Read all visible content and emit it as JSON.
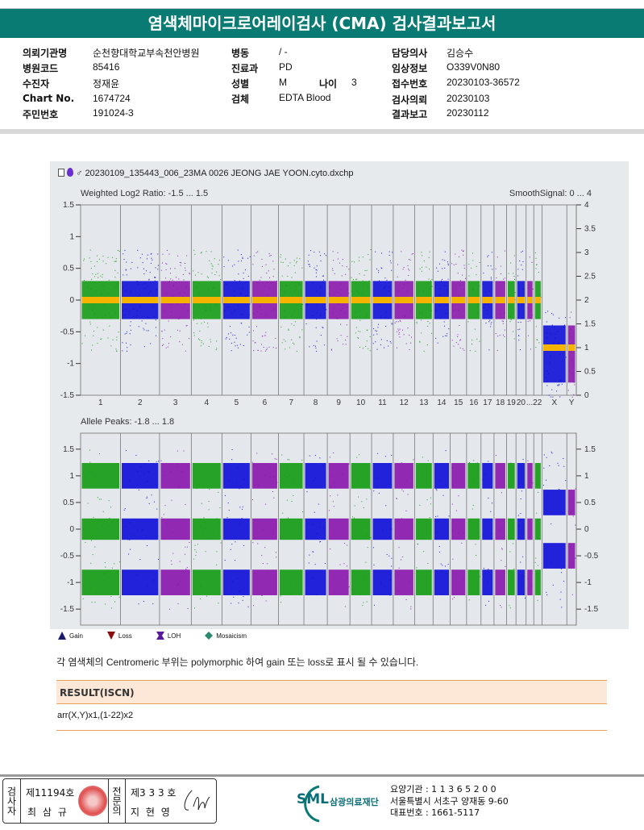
{
  "title": "염색체마이크로어레이검사 (CMA) 검사결과보고서",
  "info": {
    "hospital_label": "의뢰기관명",
    "hospital": "순천향대학교부속천안병원",
    "code_label": "병원코드",
    "code": "85416",
    "patient_label": "수진자",
    "patient": "정재윤",
    "chart_label": "Chart No.",
    "chart": "1674724",
    "id_label": "주민번호",
    "id": "191024-3",
    "ward_label": "병동",
    "ward": "/ -",
    "dept_label": "진료과",
    "dept": "PD",
    "sex_label": "성별",
    "sex": "M",
    "age_label": "나이",
    "age": "3",
    "specimen_label": "검체",
    "specimen": "EDTA Blood",
    "doctor_label": "담당의사",
    "doctor": "김승수",
    "clinical_label": "임상정보",
    "clinical": "O339V0N80",
    "receipt_label": "접수번호",
    "receipt": "20230103-36572",
    "request_label": "검사의뢰",
    "request": "20230103",
    "report_label": "결과보고",
    "report": "20230112"
  },
  "chart_data": [
    {
      "type": "scatter",
      "title": "Weighted Log2 Ratio: -1.5 ... 1.5",
      "right_title": "SmoothSignal: 0 ... 4",
      "file": "20230109_135443_006_23MA 0026 JEONG JAE YOON.cyto.dxchp",
      "ylim": [
        -1.5,
        1.5
      ],
      "yticks": [
        "1.5",
        "1",
        "0.5",
        "0",
        "-0.5",
        "-1",
        "-1.5"
      ],
      "y2lim": [
        0,
        4
      ],
      "y2ticks": [
        "4",
        "3.5",
        "3",
        "2.5",
        "2",
        "1.5",
        "1",
        "0.5",
        "0"
      ],
      "categories": [
        "1",
        "2",
        "3",
        "4",
        "5",
        "6",
        "7",
        "8",
        "9",
        "10",
        "11",
        "12",
        "13",
        "14",
        "15",
        "16",
        "17",
        "18",
        "19",
        "20",
        "21",
        "22",
        "X",
        "Y"
      ],
      "xlabels": [
        "1",
        "2",
        "3",
        "4",
        "5",
        "6",
        "7",
        "8",
        "9",
        "10",
        "11",
        "12",
        "13",
        "14",
        "15",
        "16",
        "17",
        "18",
        "19",
        "20",
        "...22",
        "X",
        "Y"
      ],
      "log2_ratio": [
        0,
        0,
        0,
        0,
        0,
        0,
        0,
        0,
        0,
        0,
        0,
        0,
        0,
        0,
        0,
        0,
        0,
        0,
        0,
        0,
        0,
        0,
        -0.85,
        -0.85
      ],
      "smooth_signal": [
        2,
        2,
        2,
        2,
        2,
        2,
        2,
        2,
        2,
        2,
        2,
        2,
        2,
        2,
        2,
        2,
        2,
        2,
        2,
        2,
        2,
        2,
        1,
        1
      ]
    },
    {
      "type": "scatter",
      "title": "Allele Peaks: -1.8 ... 1.8",
      "ylim": [
        -1.8,
        1.8
      ],
      "yticks": [
        "1.5",
        "1",
        "0.5",
        "0",
        "-0.5",
        "-1",
        "-1.5"
      ],
      "y2ticks": [
        "1.5",
        "1",
        "0.5",
        "0",
        "-0.5",
        "-1",
        "-1.5"
      ],
      "autosome_peaks": [
        1,
        0,
        -1
      ],
      "x_peaks": [
        0.5,
        -0.5
      ]
    }
  ],
  "legend": [
    {
      "label": "Gain",
      "color": "#1a1a6e"
    },
    {
      "label": "Loss",
      "color": "#8a1010"
    },
    {
      "label": "LOH",
      "color": "#5a1a9a"
    },
    {
      "label": "Mosaicism",
      "color": "#2a8a70"
    }
  ],
  "series_colors": [
    "#169c16",
    "#1010d8",
    "#8a18ac"
  ],
  "smooth_color": "#f6b400",
  "note": "각 염색체의 Centromeric 부위는 polymorphic 하여 gain 또는 loss로 표시 될 수 있습니다.",
  "result": {
    "header": "RESULT(ISCN)",
    "value": "arr(X,Y)x1,(1-22)x2"
  },
  "footer": {
    "examiner_label": "검사자",
    "examiner_no": "제11194호",
    "examiner": "최 삼 규",
    "specialist_label": "전문의",
    "specialist_no": "제3 3 3 호",
    "specialist": "지 현 영",
    "logo": "SML",
    "foundation": "삼광의료재단",
    "addr1": "요양기관 : 1 1 3 6 5 2 0 0",
    "addr2": "서울특별시 서초구 양재동 9-60",
    "addr3": "대표번호 : 1661-5117"
  }
}
